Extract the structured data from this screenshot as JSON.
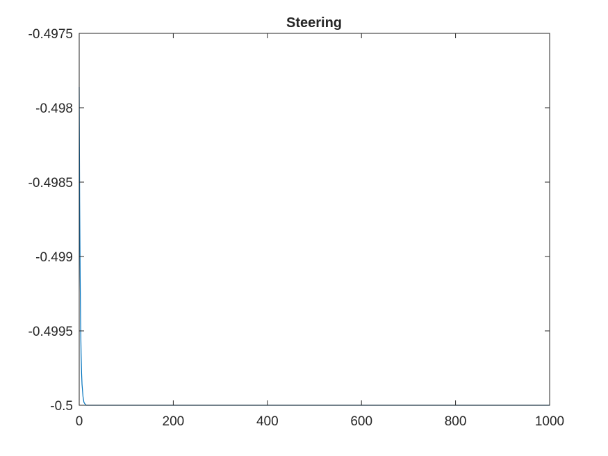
{
  "chart_data": {
    "type": "line",
    "title": "Steering",
    "xlabel": "",
    "ylabel": "",
    "xlim": [
      0,
      1000
    ],
    "ylim": [
      -0.5,
      -0.4975
    ],
    "x_ticks": [
      "0",
      "200",
      "400",
      "600",
      "800",
      "1000"
    ],
    "y_ticks": [
      "-0.5",
      "-0.4995",
      "-0.499",
      "-0.4985",
      "-0.498",
      "-0.4975"
    ],
    "grid": false,
    "series": [
      {
        "color": "#0072BD",
        "x": [
          0,
          1,
          2,
          3,
          4,
          5,
          6,
          8,
          10,
          12,
          15,
          18,
          22,
          30,
          50,
          100,
          200,
          400,
          600,
          800,
          1000
        ],
        "y": [
          -0.49786,
          -0.49864,
          -0.49913,
          -0.49945,
          -0.49965,
          -0.49978,
          -0.49986,
          -0.49994,
          -0.49998,
          -0.49999,
          -0.5,
          -0.5,
          -0.5,
          -0.5,
          -0.5,
          -0.5,
          -0.5,
          -0.5,
          -0.5,
          -0.5,
          -0.5
        ]
      }
    ]
  }
}
